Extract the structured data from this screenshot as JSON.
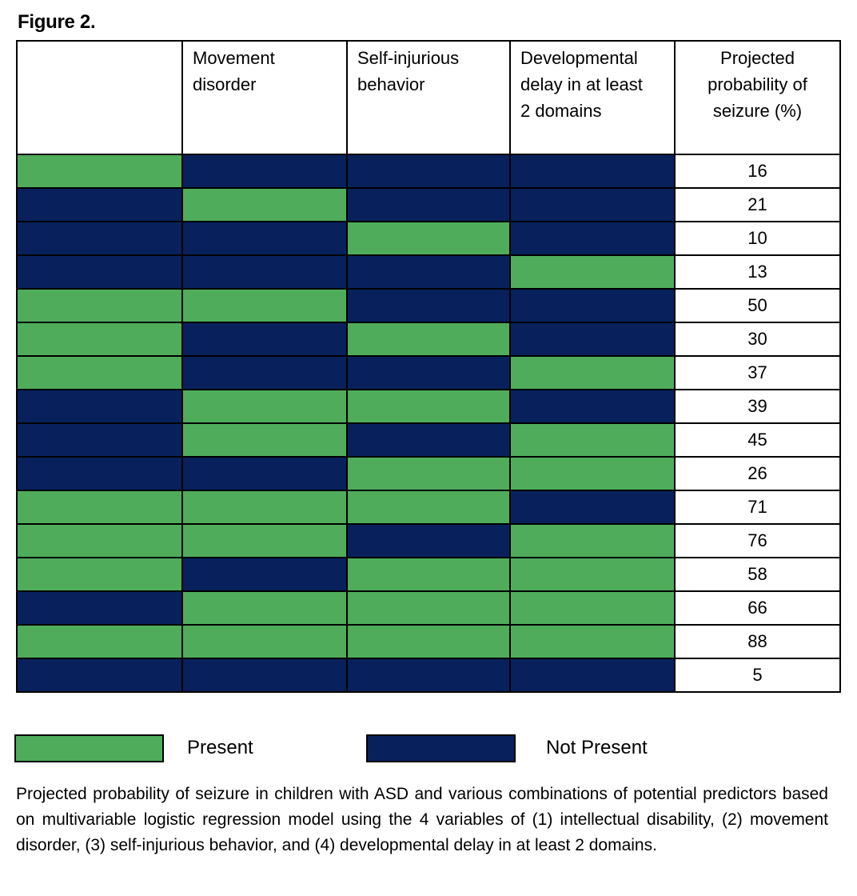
{
  "figure_title": "Figure 2.",
  "chart_data": {
    "type": "table",
    "title": "Figure 2.",
    "columns": [
      "",
      "Movement disorder",
      "Self-injurious behavior",
      "Developmental delay in at least 2 domains",
      "Projected probability of seizure (%)"
    ],
    "header_lines": [
      [],
      [
        "Movement",
        "disorder"
      ],
      [
        "Self-injurious",
        "behavior"
      ],
      [
        "Developmental",
        "delay in at least",
        "2 domains"
      ],
      [
        "Projected",
        "probability of",
        "seizure (%)"
      ]
    ],
    "rows": [
      {
        "flags": [
          1,
          0,
          0,
          0
        ],
        "probability": "16"
      },
      {
        "flags": [
          0,
          1,
          0,
          0
        ],
        "probability": "21"
      },
      {
        "flags": [
          0,
          0,
          1,
          0
        ],
        "probability": "10"
      },
      {
        "flags": [
          0,
          0,
          0,
          1
        ],
        "probability": "13"
      },
      {
        "flags": [
          1,
          1,
          0,
          0
        ],
        "probability": "50"
      },
      {
        "flags": [
          1,
          0,
          1,
          0
        ],
        "probability": "30"
      },
      {
        "flags": [
          1,
          0,
          0,
          1
        ],
        "probability": "37"
      },
      {
        "flags": [
          0,
          1,
          1,
          0
        ],
        "probability": "39"
      },
      {
        "flags": [
          0,
          1,
          0,
          1
        ],
        "probability": "45"
      },
      {
        "flags": [
          0,
          0,
          1,
          1
        ],
        "probability": "26"
      },
      {
        "flags": [
          1,
          1,
          1,
          0
        ],
        "probability": "71"
      },
      {
        "flags": [
          1,
          1,
          0,
          1
        ],
        "probability": "76"
      },
      {
        "flags": [
          1,
          0,
          1,
          1
        ],
        "probability": "58"
      },
      {
        "flags": [
          0,
          1,
          1,
          1
        ],
        "probability": "66"
      },
      {
        "flags": [
          1,
          1,
          1,
          1
        ],
        "probability": "88"
      },
      {
        "flags": [
          0,
          0,
          0,
          0
        ],
        "probability": "5"
      }
    ],
    "legend": [
      {
        "label": "Present",
        "color": "#4fac5b"
      },
      {
        "label": "Not Present",
        "color": "#08215c"
      }
    ]
  },
  "legend": {
    "present_label": "Present",
    "absent_label": "Not Present"
  },
  "caption": "Projected probability of seizure in children with ASD and various combinations of potential predictors based on multivariable logistic regression model using the 4 variables of (1) intellectual disability, (2) movement disorder, (3) self-injurious behavior, and (4) developmental delay in at least 2 domains."
}
